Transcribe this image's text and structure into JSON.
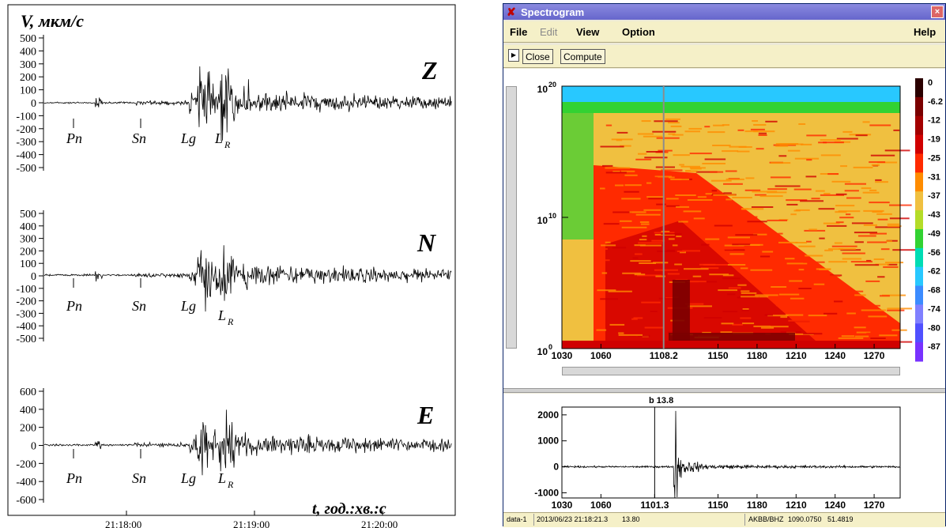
{
  "left_figure": {
    "y_axis_label": "V, мкм/с",
    "x_axis_label": "t, год.:хв.:с",
    "channels": [
      {
        "name": "Z",
        "ticks": [
          "500",
          "400",
          "300",
          "200",
          "100",
          "0",
          "-100",
          "-200",
          "-300",
          "-400",
          "-500"
        ]
      },
      {
        "name": "N",
        "ticks": [
          "500",
          "400",
          "300",
          "200",
          "100",
          "0",
          "-100",
          "-200",
          "-300",
          "-400",
          "-500"
        ]
      },
      {
        "name": "E",
        "ticks": [
          "600",
          "400",
          "200",
          "0",
          "-200",
          "-400",
          "-600"
        ]
      }
    ],
    "phase_labels": [
      "Pn",
      "Sn",
      "Lg",
      "L",
      "R"
    ],
    "time_ticks": [
      "21:18:00",
      "21:19:00",
      "21:20:00"
    ]
  },
  "window": {
    "title": "Spectrogram",
    "close_glyph": "×",
    "menu": [
      "File",
      "Edit",
      "View",
      "Option",
      "Help"
    ],
    "toolbar": {
      "arrow_glyph": "▶",
      "close_label": "Close",
      "compute_label": "Compute"
    }
  },
  "spectrogram": {
    "y_ticks": [
      {
        "base": "10",
        "exp": "20"
      },
      {
        "base": "10",
        "exp": "10"
      },
      {
        "base": "10",
        "exp": "0"
      }
    ],
    "x_ticks": [
      "1030",
      "1060",
      "1108.2",
      "1150",
      "1180",
      "1210",
      "1240",
      "1270"
    ],
    "x_range": [
      1030,
      1290
    ],
    "cursor_x": 1108.2,
    "colorbar": [
      {
        "label": "0",
        "color": "#2a0000"
      },
      {
        "label": "-6.2",
        "color": "#7a0000"
      },
      {
        "label": "-12",
        "color": "#a30000"
      },
      {
        "label": "-19",
        "color": "#d00000"
      },
      {
        "label": "-25",
        "color": "#ff2a00"
      },
      {
        "label": "-31",
        "color": "#ff8c00"
      },
      {
        "label": "-37",
        "color": "#f0c040"
      },
      {
        "label": "-43",
        "color": "#b4dc28"
      },
      {
        "label": "-49",
        "color": "#32d232"
      },
      {
        "label": "-56",
        "color": "#00dcb4"
      },
      {
        "label": "-62",
        "color": "#28c8ff"
      },
      {
        "label": "-68",
        "color": "#3c8cff"
      },
      {
        "label": "-74",
        "color": "#8080ff"
      },
      {
        "label": "-80",
        "color": "#5050ff"
      },
      {
        "label": "-87",
        "color": "#7832ff"
      }
    ]
  },
  "waveform": {
    "marker_label": "b 13.8",
    "y_ticks": [
      "2000",
      "1000",
      "0",
      "-1000"
    ],
    "y_range": [
      -1200,
      2300
    ],
    "x_ticks": [
      "1030",
      "1060",
      "1101.3",
      "1150",
      "1180",
      "1210",
      "1240",
      "1270"
    ],
    "x_range": [
      1030,
      1290
    ],
    "marker_x": 1101.3
  },
  "status": {
    "channel": "data-1",
    "time": "2013/06/23 21:18:21.3",
    "value": "13.80",
    "station": "AKBB/BHZ",
    "coord1": "1090.0750",
    "coord2": "51.4819"
  }
}
